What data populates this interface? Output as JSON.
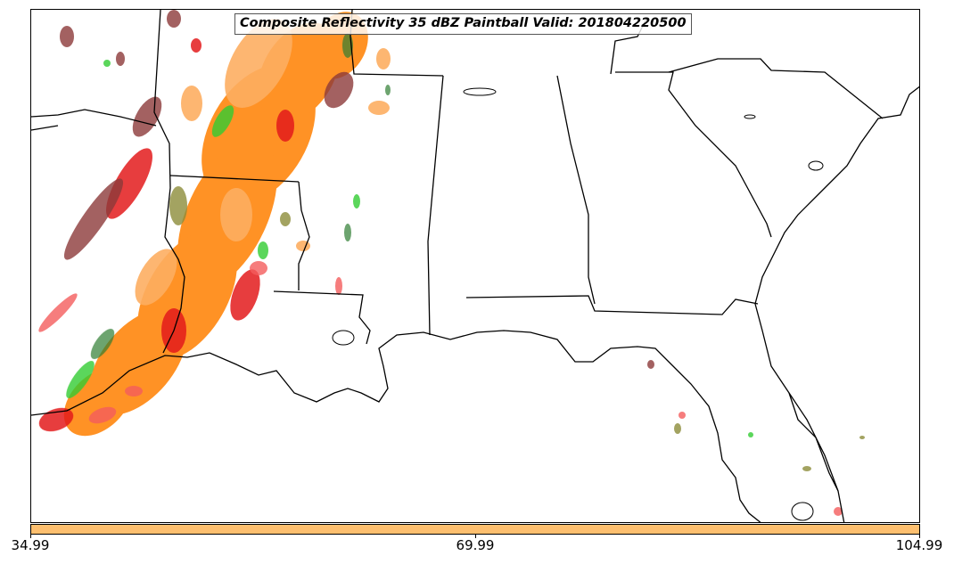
{
  "title": "Composite Reflectivity 35 dBZ Paintball Valid: 201804220500",
  "colorbar": {
    "color": "#fdbf6f",
    "ticks": [
      "34.99",
      "69.99",
      "104.99"
    ]
  },
  "colors": {
    "orange": "#ff7f00",
    "light_orange": "#fdae61",
    "red": "#e31a1c",
    "pink_red": "#f45d5d",
    "brown": "#8c3a3a",
    "olive": "#8c8c3a",
    "green": "#33cc33",
    "dark_green": "#2e7d32",
    "outline": "#000000"
  }
}
